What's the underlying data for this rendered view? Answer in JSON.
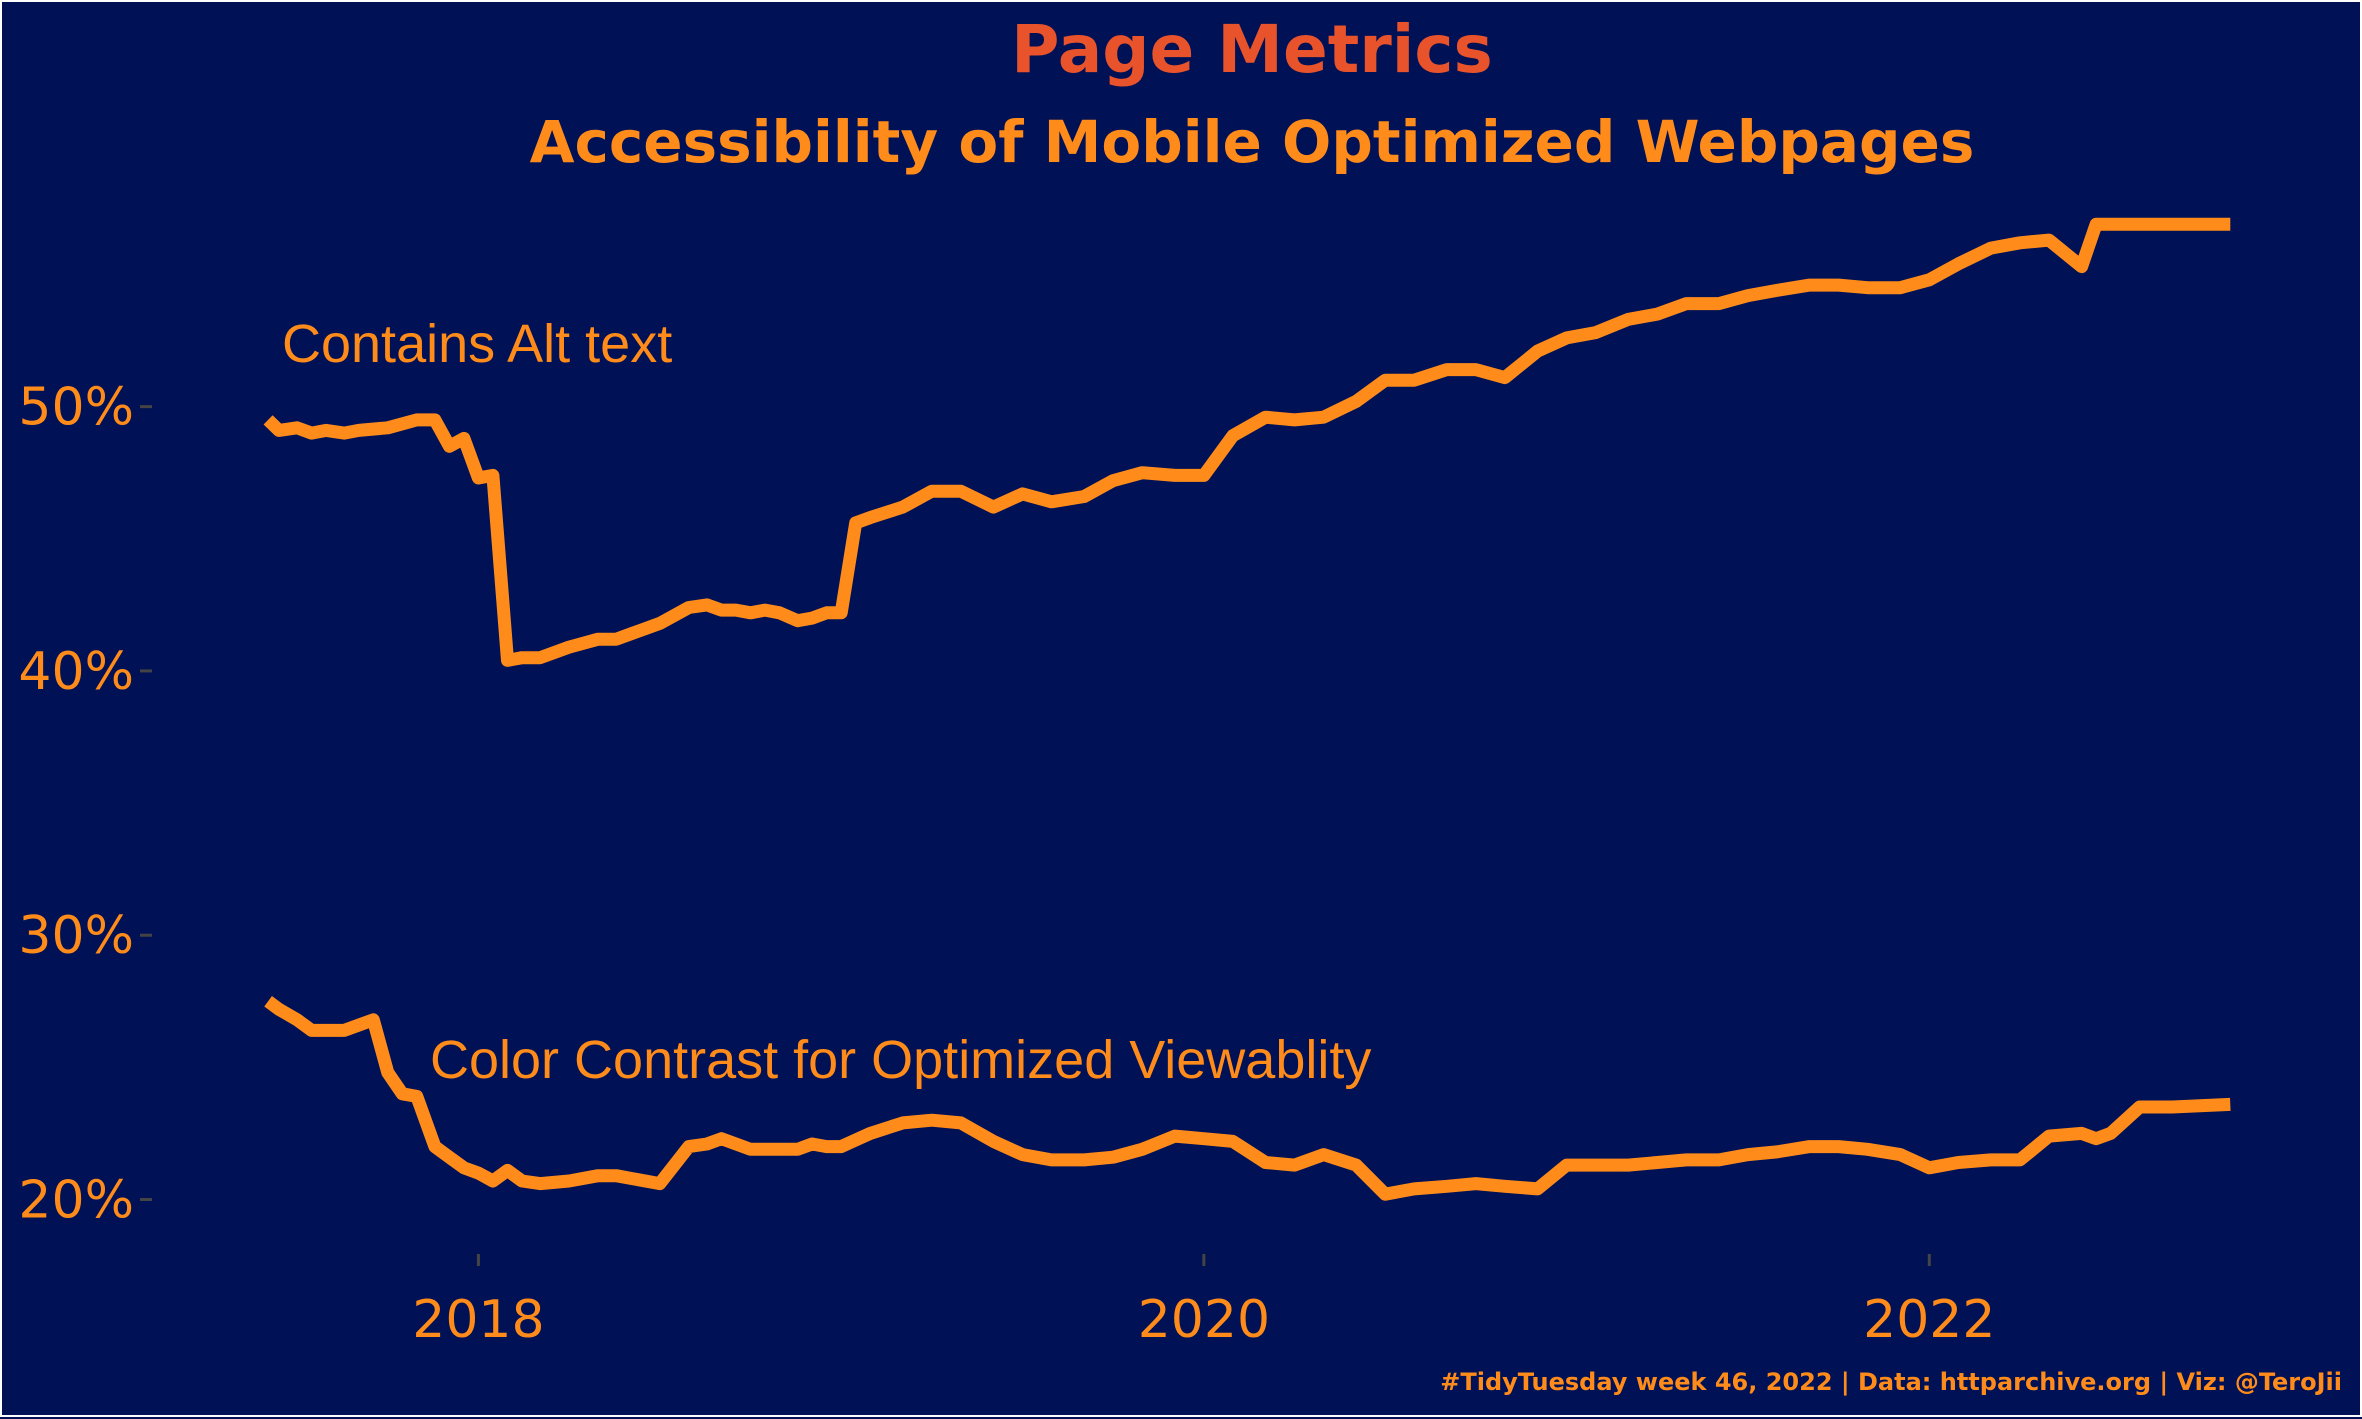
{
  "chart_data": {
    "type": "line",
    "title": "Page Metrics",
    "subtitle": "Accessibility of Mobile Optimized Webpages",
    "caption": "#TidyTuesday week 46, 2022 | Data: httparchive.org | Viz: @TeroJii",
    "xlabel": "",
    "ylabel": "",
    "xlim": [
      2017.1,
      2023.0
    ],
    "ylim": [
      16.5,
      58.5
    ],
    "x_ticks": [
      2018,
      2020,
      2022
    ],
    "x_tick_labels": [
      "2018",
      "2020",
      "2022"
    ],
    "y_ticks": [
      20,
      30,
      40,
      50
    ],
    "y_tick_labels": [
      "20%",
      "30%",
      "40%",
      "50%"
    ],
    "grid": false,
    "legend": "none",
    "colors": {
      "background": "#001155",
      "line": "#ff8c1a",
      "text": "#ff8c1a",
      "title": "#e8532b",
      "tick_mark": "#444444"
    },
    "series": [
      {
        "name": "Contains Alt text",
        "x": [
          2017.42,
          2017.45,
          2017.5,
          2017.54,
          2017.58,
          2017.63,
          2017.67,
          2017.75,
          2017.83,
          2017.88,
          2017.92,
          2017.96,
          2018.0,
          2018.04,
          2018.08,
          2018.12,
          2018.17,
          2018.25,
          2018.33,
          2018.38,
          2018.42,
          2018.5,
          2018.58,
          2018.63,
          2018.67,
          2018.71,
          2018.75,
          2018.79,
          2018.83,
          2018.88,
          2018.92,
          2018.96,
          2019.0,
          2019.04,
          2019.08,
          2019.17,
          2019.25,
          2019.33,
          2019.42,
          2019.5,
          2019.58,
          2019.67,
          2019.75,
          2019.83,
          2019.92,
          2020.0,
          2020.08,
          2020.17,
          2020.25,
          2020.33,
          2020.42,
          2020.5,
          2020.58,
          2020.67,
          2020.75,
          2020.83,
          2020.92,
          2021.0,
          2021.08,
          2021.17,
          2021.25,
          2021.33,
          2021.42,
          2021.5,
          2021.58,
          2021.67,
          2021.75,
          2021.83,
          2021.92,
          2022.0,
          2022.08,
          2022.17,
          2022.25,
          2022.33,
          2022.42,
          2022.46,
          2022.5,
          2022.58,
          2022.67,
          2022.83
        ],
        "y": [
          49.5,
          49.1,
          49.2,
          49.0,
          49.1,
          49.0,
          49.1,
          49.2,
          49.5,
          49.5,
          48.5,
          48.8,
          47.3,
          47.4,
          40.4,
          40.5,
          40.5,
          40.9,
          41.2,
          41.2,
          41.4,
          41.8,
          42.4,
          42.5,
          42.3,
          42.3,
          42.2,
          42.3,
          42.2,
          41.9,
          42.0,
          42.2,
          42.2,
          45.6,
          45.8,
          46.2,
          46.8,
          46.8,
          46.2,
          46.7,
          46.4,
          46.6,
          47.2,
          47.5,
          47.4,
          47.4,
          48.9,
          49.6,
          49.5,
          49.6,
          50.2,
          51.0,
          51.0,
          51.4,
          51.4,
          51.1,
          52.1,
          52.6,
          52.8,
          53.3,
          53.5,
          53.9,
          53.9,
          54.2,
          54.4,
          54.6,
          54.6,
          54.5,
          54.5,
          54.8,
          55.4,
          56.0,
          56.2,
          56.3,
          55.3,
          56.9,
          56.9,
          56.9,
          56.9,
          56.9
        ]
      },
      {
        "name": "Color Contrast for Optimized Viewablity",
        "x": [
          2017.42,
          2017.45,
          2017.5,
          2017.54,
          2017.58,
          2017.63,
          2017.67,
          2017.71,
          2017.75,
          2017.79,
          2017.83,
          2017.88,
          2017.92,
          2017.96,
          2018.0,
          2018.04,
          2018.08,
          2018.12,
          2018.17,
          2018.25,
          2018.33,
          2018.38,
          2018.42,
          2018.5,
          2018.58,
          2018.63,
          2018.67,
          2018.75,
          2018.83,
          2018.88,
          2018.92,
          2018.96,
          2019.0,
          2019.08,
          2019.17,
          2019.25,
          2019.33,
          2019.42,
          2019.5,
          2019.58,
          2019.67,
          2019.75,
          2019.83,
          2019.92,
          2020.0,
          2020.08,
          2020.17,
          2020.25,
          2020.33,
          2020.42,
          2020.5,
          2020.58,
          2020.67,
          2020.75,
          2020.83,
          2020.92,
          2021.0,
          2021.08,
          2021.17,
          2021.25,
          2021.33,
          2021.42,
          2021.5,
          2021.58,
          2021.67,
          2021.75,
          2021.83,
          2021.92,
          2022.0,
          2022.08,
          2022.17,
          2022.25,
          2022.33,
          2022.42,
          2022.46,
          2022.5,
          2022.58,
          2022.67,
          2022.83
        ],
        "y": [
          27.5,
          27.2,
          26.8,
          26.4,
          26.4,
          26.4,
          26.6,
          26.8,
          24.8,
          24.0,
          23.9,
          22.0,
          21.6,
          21.2,
          21.0,
          20.7,
          21.1,
          20.7,
          20.6,
          20.7,
          20.9,
          20.9,
          20.8,
          20.6,
          22.0,
          22.1,
          22.3,
          21.9,
          21.9,
          21.9,
          22.1,
          22.0,
          22.0,
          22.5,
          22.9,
          23.0,
          22.9,
          22.2,
          21.7,
          21.5,
          21.5,
          21.6,
          21.9,
          22.4,
          22.3,
          22.2,
          21.4,
          21.3,
          21.7,
          21.3,
          20.2,
          20.4,
          20.5,
          20.6,
          20.5,
          20.4,
          21.3,
          21.3,
          21.3,
          21.4,
          21.5,
          21.5,
          21.7,
          21.8,
          22.0,
          22.0,
          21.9,
          21.7,
          21.2,
          21.4,
          21.5,
          21.5,
          22.4,
          22.5,
          22.3,
          22.5,
          23.5,
          23.5,
          23.6
        ]
      }
    ]
  }
}
